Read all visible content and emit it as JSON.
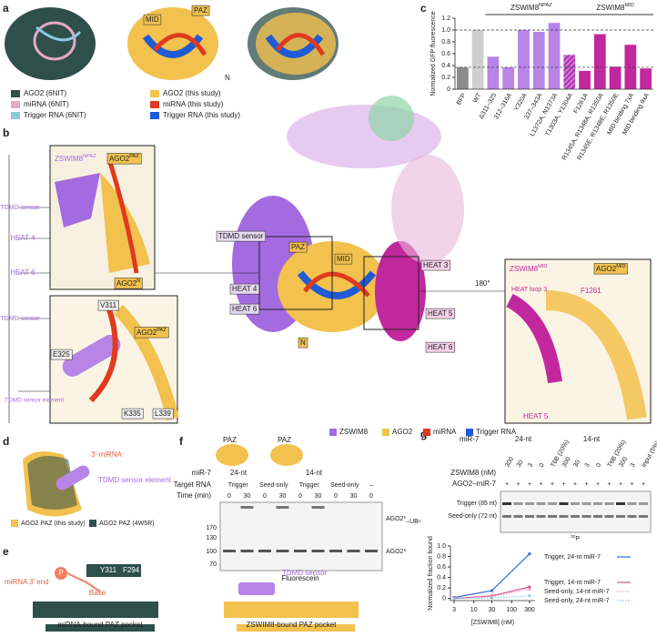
{
  "panel_labels": [
    "a",
    "b",
    "c",
    "d",
    "e",
    "f",
    "g"
  ],
  "a": {
    "labels": [
      "MID",
      "PAZ",
      "N"
    ],
    "legend": [
      "AGO2 (6NIT)",
      "miRNA (6NIT)",
      "Trigger RNA (6NIT)",
      "AGO2 (this study)",
      "miRNA (this study)",
      "Trigger RNA (this study)"
    ]
  },
  "b": {
    "left_labels": [
      {
        "text": "ZSWIM8",
        "sup": "NPAZ"
      },
      {
        "text": "AGO2",
        "sup": "PAZ"
      },
      "TDMD sensor",
      "HEAT 4",
      "HEAT 6",
      {
        "text": "AGO2",
        "sup": "N"
      },
      "V311",
      "TDMD sensor",
      {
        "text": "AGO2",
        "sup": "PAZ"
      },
      "E325",
      "TDMD sensor element",
      "K335",
      "L339"
    ],
    "center_labels": [
      "TDMD sensor",
      "PAZ",
      "MID",
      "HEAT 3",
      "HEAT 4",
      "HEAT 6",
      "N",
      "HEAT 5",
      "HEAT 6",
      "180°"
    ],
    "right_labels": [
      {
        "text": "ZSWIM8",
        "sup": "MID"
      },
      {
        "text": "AGO2",
        "sup": "MID"
      },
      "HEAT loop 3",
      "F1261",
      "HEAT 5"
    ],
    "legend": [
      "ZSWIM8",
      "AGO2",
      "miRNA",
      "Trigger RNA"
    ]
  },
  "d": {
    "labels": [
      "3′-miRNA",
      "TDMD sensor element"
    ],
    "legend": [
      "AGO2 PAZ (this study)",
      "AGO2 PAZ (4W5R)"
    ]
  },
  "e": {
    "labels": [
      "miRNA 3′ end",
      "P",
      "Y311",
      "F294",
      "Base",
      "miRNA-bound PAZ pocket",
      "TDMD sensor",
      "ZSWIM8-bound PAZ pocket"
    ]
  },
  "f": {
    "cartoons": [
      "PAZ",
      "PAZ"
    ],
    "mir": "miR-7",
    "lengths": [
      "24-nt",
      "14-nt"
    ],
    "target_label": "Target RNA",
    "targets": [
      "Trigger",
      "Seed-only",
      "Trigger",
      "Seed-only",
      "–"
    ],
    "time_label": "Time (min)",
    "times": [
      "0",
      "30",
      "0",
      "30",
      "0",
      "30",
      "0",
      "30",
      "0"
    ],
    "ladder": [
      "170",
      "130",
      "100",
      "70"
    ],
    "band_labels": [
      {
        "text": "AGO2*",
        "sub": "–UB"
      },
      "AGO2*"
    ],
    "ub_sub": "n",
    "footer": "Fluorescein"
  },
  "g": {
    "mir": "miR-7",
    "lengths": [
      "24-nt",
      "14-nt"
    ],
    "conc_label": "ZSWIM8 (nM)",
    "lanes": [
      "300",
      "30",
      "3",
      "0",
      "T6B (20%)",
      "300",
      "30",
      "3",
      "0",
      "T6B (20%)",
      "300",
      "3",
      "Input (5%)"
    ],
    "complex_label": "AGO2–miR-7",
    "plus": [
      "+",
      "+",
      "+",
      "+",
      "+",
      "+",
      "+",
      "+",
      "+",
      "+",
      "+",
      "+",
      "+"
    ],
    "band_labels": [
      "Trigger (85 nt)",
      "Seed-only (72 nt)"
    ],
    "isotope": {
      "sup": "32",
      "text": "P"
    }
  },
  "chart_data": [
    {
      "type": "bar",
      "ylabel": "Normalized GFP fluorescence",
      "annotations": [
        {
          "text": "ZSWIM8",
          "sup": "NPAZ"
        },
        {
          "text": "ZSWIM8",
          "sup": "MID"
        }
      ],
      "categories": [
        "BFP",
        "WT",
        "Δ311–325",
        "312–316A",
        "Y320A",
        "337–343A",
        "L1372A, N1373A",
        "T1303A, Y1304A",
        "F1261A",
        "R1345A, R1348A, R1350A",
        "R1345E, R1348E, R1350E",
        "MID binding 7xA",
        "MID binding 9xA"
      ],
      "values": [
        0.37,
        1.0,
        0.55,
        0.37,
        1.0,
        0.97,
        1.12,
        0.58,
        0.31,
        0.93,
        0.38,
        0.75,
        0.35
      ],
      "colors": [
        "#8c8c8c",
        "#cfcfcf",
        "#b884e6",
        "#b884e6",
        "#b884e6",
        "#b884e6",
        "#b884e6",
        "#b884e6",
        "#c2289d",
        "#c2289d",
        "#c2289d",
        "#c2289d",
        "#c2289d"
      ],
      "hatch": [
        7
      ],
      "reference_lines": [
        1.0,
        0.37
      ],
      "ylim": [
        0,
        1.2
      ],
      "yticks": [
        0,
        0.2,
        0.4,
        0.6,
        0.8,
        {
          "value": 1,
          "label": "1.0"
        },
        1.2
      ]
    },
    {
      "type": "line",
      "xlabel": "[ZSWIM8] (nM)",
      "ylabel": "Normalized fraction bound",
      "log_x": true,
      "x": [
        3,
        30,
        300
      ],
      "series": [
        {
          "name": "Trigger, 24-nt miR-7",
          "color": "#2f6fd6",
          "style": "solid",
          "values": [
            0.02,
            0.15,
            0.85
          ]
        },
        {
          "name": "Trigger, 14-nt miR-7",
          "color": "#d6558f",
          "style": "solid",
          "values": [
            0.0,
            0.05,
            0.22
          ]
        },
        {
          "name": "Seed-only, 14-nt miR-7",
          "color": "#e9a2c8",
          "style": "dotted",
          "values": [
            0.0,
            0.03,
            0.18
          ]
        },
        {
          "name": "Seed-only, 24-nt miR-7",
          "color": "#8ec5e8",
          "style": "dotted",
          "values": [
            0.0,
            0.01,
            0.05
          ]
        }
      ],
      "xlim": [
        2.4,
        420
      ],
      "xticks": [
        3,
        10,
        30,
        100,
        300
      ],
      "ylim": [
        -0.04,
        1.0
      ],
      "yticks": [
        0,
        0.2,
        0.4,
        0.6,
        0.8,
        {
          "value": 1,
          "label": "1.0"
        }
      ]
    }
  ]
}
